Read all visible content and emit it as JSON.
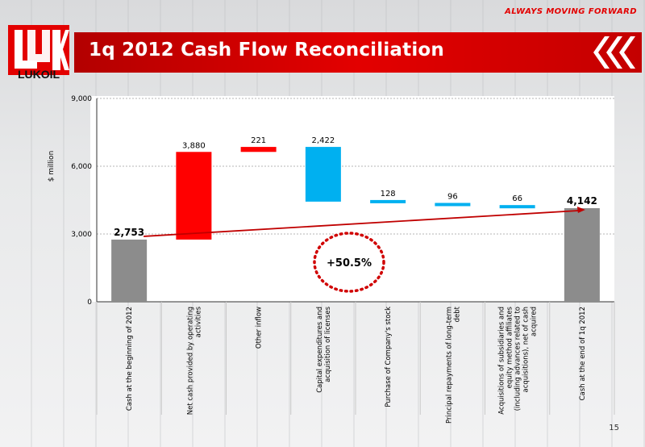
{
  "header": {
    "title": "1q 2012 Cash Flow Reconciliation",
    "tagline": "ALWAYS MOVING FORWARD",
    "logo_text": "LUKOIL",
    "brand_color": "#e30000"
  },
  "page_number": "15",
  "chart_data": {
    "type": "bar",
    "subtype": "waterfall",
    "ylabel": "$ million",
    "ylim": [
      0,
      9000
    ],
    "yticks": [
      "0",
      "3,000",
      "6,000",
      "9,000"
    ],
    "ytick_values": [
      0,
      3000,
      6000,
      9000
    ],
    "grid": true,
    "categories": [
      "Cash at the beginning of 2012",
      "Net cash provided by operating activities",
      "Other inflow",
      "Capital expenditures and acquisition of licenses",
      "Purchase of Company's stock",
      "Principal repayments of long-term debt",
      "Acquisitions of subsidiaries and equity method affiliates (including advances related to acquisitions), net of cash acquired",
      "Cash at the end of 1q 2012"
    ],
    "values": [
      2753,
      3880,
      221,
      -2422,
      -128,
      -96,
      -66,
      4142
    ],
    "value_labels": [
      "2,753",
      "3,880",
      "221",
      "2,422",
      "128",
      "96",
      "66",
      "4,142"
    ],
    "bar_kinds": [
      "total",
      "increase",
      "increase",
      "decrease",
      "decrease",
      "decrease",
      "decrease",
      "total"
    ],
    "colors": {
      "total": "#8c8c8c",
      "increase": "#ff0000",
      "decrease": "#00b0f0"
    },
    "annotation": "+50.5%",
    "trend_arrow": {
      "from": 2753,
      "to": 4142,
      "color": "#c00000"
    }
  }
}
